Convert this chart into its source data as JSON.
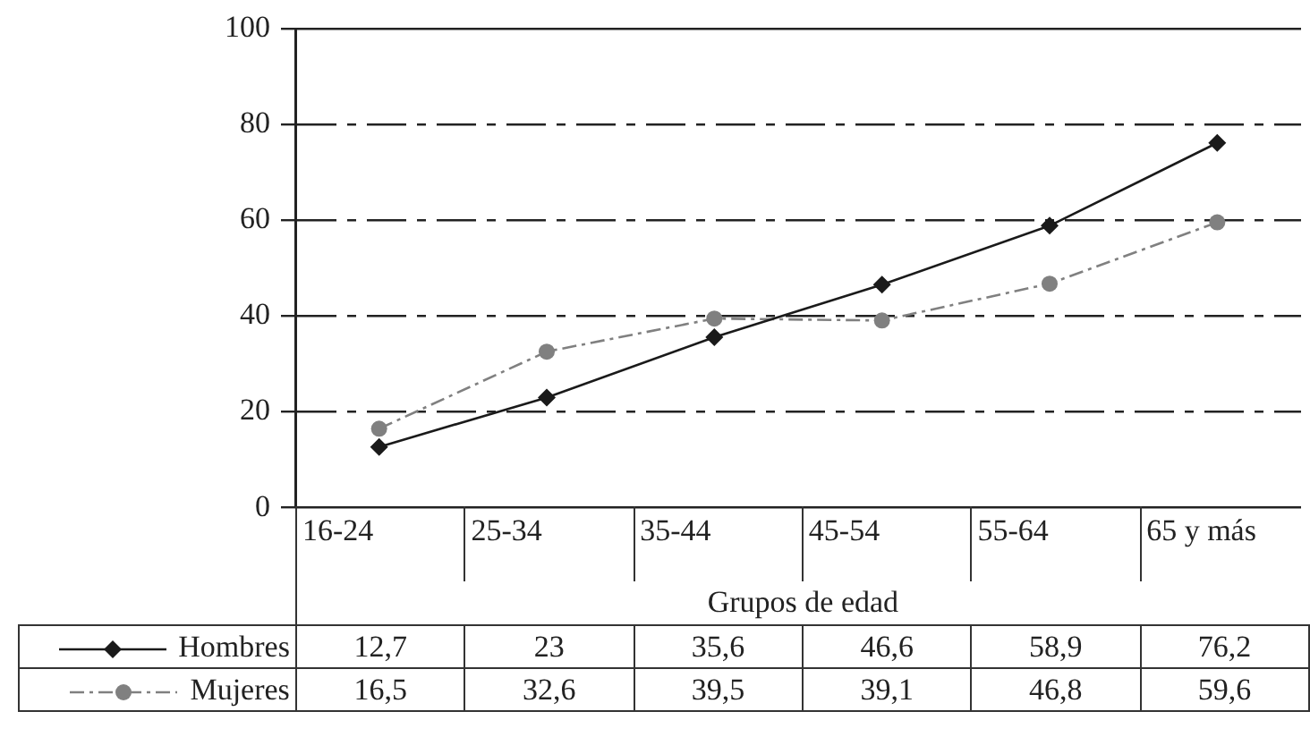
{
  "chart_data": {
    "type": "line",
    "xlabel": "Grupos de edad",
    "categories": [
      "16-24",
      "25-34",
      "35-44",
      "45-54",
      "55-64",
      "65 y más"
    ],
    "series": [
      {
        "name": "Hombres",
        "color": "#1a1a1a",
        "marker": "diamond",
        "line_style": "solid",
        "values": [
          12.7,
          23,
          35.6,
          46.6,
          58.9,
          76.2
        ],
        "value_labels": [
          "12,7",
          "23",
          "35,6",
          "46,6",
          "58,9",
          "76,2"
        ]
      },
      {
        "name": "Mujeres",
        "color": "#808080",
        "marker": "circle",
        "line_style": "dashdot",
        "values": [
          16.5,
          32.6,
          39.5,
          39.1,
          46.8,
          59.6
        ],
        "value_labels": [
          "16,5",
          "32,6",
          "39,5",
          "39,1",
          "46,8",
          "59,6"
        ]
      }
    ],
    "ylim": [
      0,
      100
    ],
    "yticks": [
      0,
      20,
      40,
      60,
      80,
      100
    ],
    "grid": "y",
    "legend": "bottom"
  }
}
